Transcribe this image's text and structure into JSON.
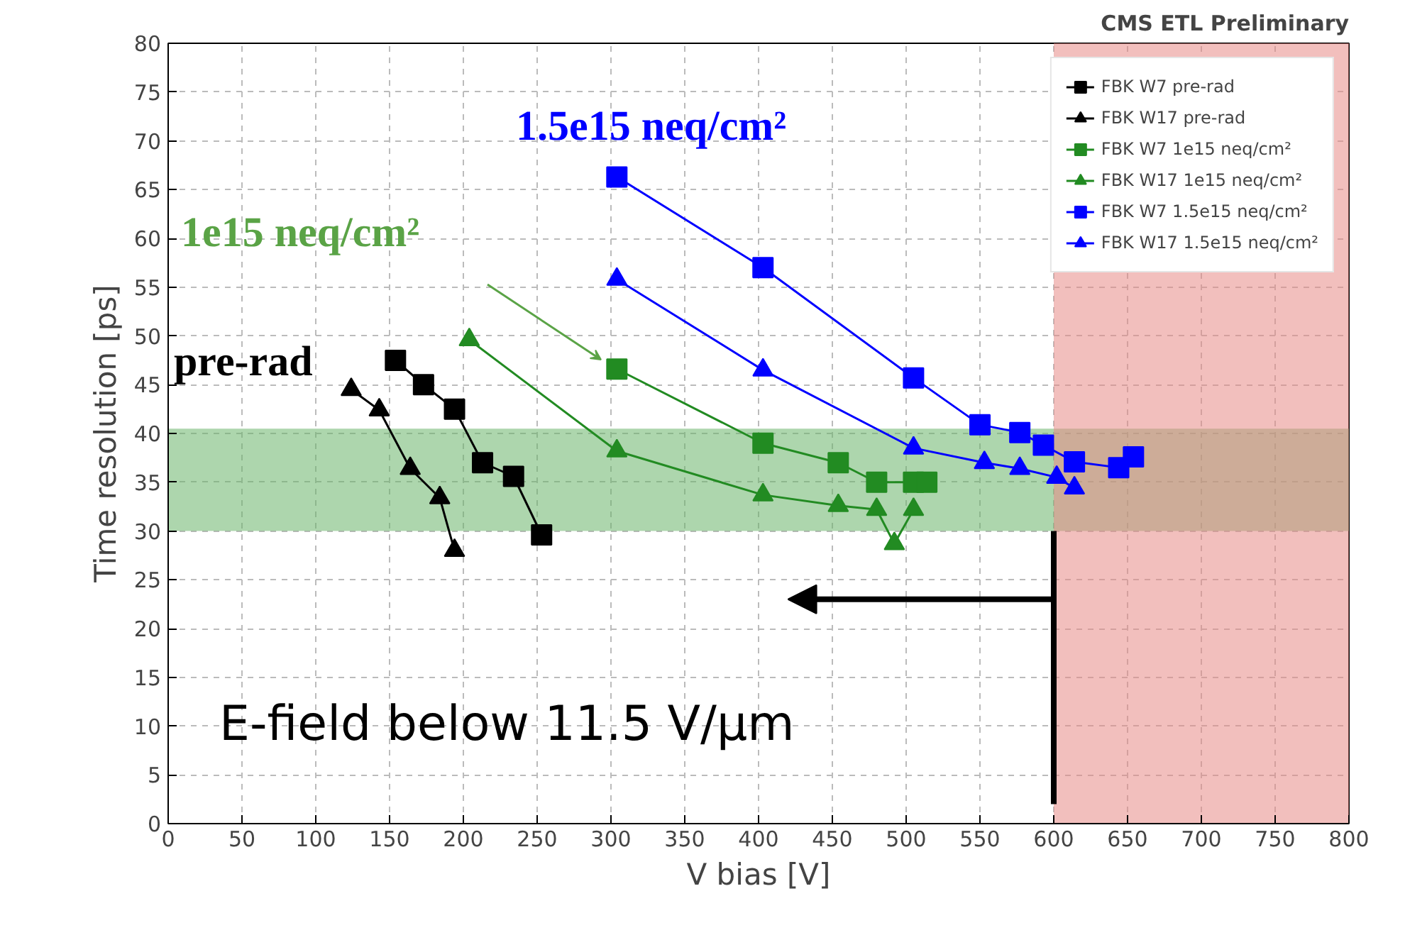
{
  "chart_data": {
    "type": "line",
    "title": "CMS ETL Preliminary",
    "xlabel": "V bias [V]",
    "ylabel": "Time resolution [ps]",
    "xlim": [
      0,
      800
    ],
    "xticks": [
      0,
      50,
      100,
      150,
      200,
      250,
      300,
      350,
      400,
      450,
      500,
      550,
      600,
      650,
      700,
      750,
      800
    ],
    "ylim": [
      0,
      80
    ],
    "yticks": [
      0,
      5,
      10,
      15,
      20,
      25,
      30,
      35,
      40,
      45,
      50,
      55,
      60,
      65,
      70,
      75,
      80
    ],
    "grid": true,
    "legend": "top right",
    "line_style": "solid",
    "series": [
      {
        "name": "FBK W7 pre-rad",
        "color": "#000000",
        "marker": "square",
        "x": [
          154,
          173,
          194,
          213,
          234,
          253
        ],
        "values": [
          47.5,
          45,
          42.5,
          37,
          35.6,
          29.6
        ]
      },
      {
        "name": "FBK W17 pre-rad",
        "color": "#000000",
        "marker": "triangle",
        "x": [
          124,
          143,
          164,
          184,
          194
        ],
        "values": [
          44.5,
          42.4,
          36.4,
          33.4,
          28
        ]
      },
      {
        "name": "FBK W7 1e15 neq/cm²",
        "color": "#228b22",
        "marker": "square",
        "x": [
          304,
          403,
          454,
          480,
          505,
          514
        ],
        "values": [
          46.6,
          39,
          37,
          35,
          35,
          35
        ]
      },
      {
        "name": "FBK W17 1e15 neq/cm²",
        "color": "#228b22",
        "marker": "triangle",
        "x": [
          204,
          304,
          403,
          454,
          480,
          492,
          505
        ],
        "values": [
          49.6,
          38.2,
          33.7,
          32.6,
          32.2,
          28.7,
          32.2
        ]
      },
      {
        "name": "FBK W7 1.5e15 neq/cm²",
        "color": "#0000ff",
        "marker": "square",
        "x": [
          304,
          403,
          505,
          550,
          577,
          593,
          614,
          644,
          654
        ],
        "values": [
          66.3,
          57,
          45.7,
          40.9,
          40.1,
          38.8,
          37.1,
          36.5,
          37.6
        ]
      },
      {
        "name": "FBK W17 1.5e15 neq/cm²",
        "color": "#0000ff",
        "marker": "triangle",
        "x": [
          304,
          403,
          505,
          553,
          577,
          602,
          614
        ],
        "values": [
          55.8,
          46.5,
          38.5,
          37,
          36.4,
          35.5,
          34.4
        ]
      }
    ],
    "ref_lines": [
      {
        "axis": "x",
        "value": 600,
        "color": "#000000"
      }
    ],
    "bands": [
      {
        "axis": "y",
        "from": 30,
        "to": 40.5,
        "color": "#6ab56a"
      },
      {
        "axis": "x",
        "from": 600,
        "to": 800,
        "color": "#e88a86"
      }
    ],
    "annotations": [
      "pre-rad",
      "1e15 neq/cm²",
      "1.5e15 neq/cm²",
      "E-field below 11.5 V/µm"
    ]
  }
}
